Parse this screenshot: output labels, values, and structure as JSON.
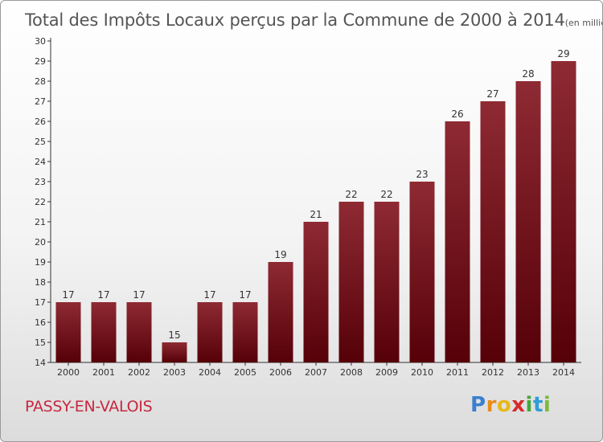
{
  "chart_data": {
    "type": "bar",
    "title": "Total des Impôts Locaux perçus par la Commune de 2000 à 2014",
    "unit_label": "(en milliers d'€)",
    "categories": [
      "2000",
      "2001",
      "2002",
      "2003",
      "2004",
      "2005",
      "2006",
      "2007",
      "2008",
      "2009",
      "2010",
      "2011",
      "2012",
      "2013",
      "2014"
    ],
    "values": [
      17,
      17,
      17,
      15,
      17,
      17,
      19,
      21,
      22,
      22,
      23,
      26,
      27,
      28,
      29
    ],
    "data_labels": [
      "17",
      "17",
      "17",
      "15",
      "17",
      "17",
      "19",
      "21",
      "22",
      "22",
      "23",
      "26",
      "27",
      "28",
      "29"
    ],
    "y_ticks": [
      "14",
      "15",
      "16",
      "17",
      "18",
      "19",
      "20",
      "21",
      "22",
      "23",
      "24",
      "25",
      "26",
      "27",
      "28",
      "29",
      "30"
    ],
    "xlabel": "",
    "ylabel": "",
    "ylim": [
      14,
      30
    ],
    "grid": false,
    "legend": "none",
    "bar_color": "#7a1a22"
  },
  "footer": {
    "commune": "PASSY-EN-VALOIS",
    "logo": "Proxiti"
  }
}
